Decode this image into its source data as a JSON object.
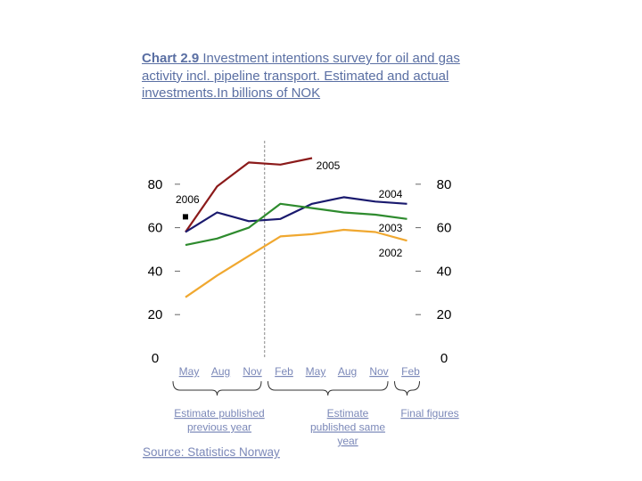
{
  "chart_data": {
    "type": "line",
    "title_bold": "Chart 2.9",
    "title_rest": " Investment intentions survey for oil and gas activity incl. pipeline transport. Estimated and actual investments.In billions of NOK",
    "x": [
      "May",
      "Aug",
      "Nov",
      "Feb",
      "May",
      "Aug",
      "Nov",
      "Feb"
    ],
    "ylim": [
      0,
      80
    ],
    "yticks": [
      0,
      20,
      40,
      60,
      80
    ],
    "series": [
      {
        "name": "2005",
        "color": "#8b1a1a",
        "values": [
          58,
          79,
          90,
          89,
          92,
          null,
          null,
          null
        ]
      },
      {
        "name": "2004",
        "color": "#1a1a6e",
        "values": [
          58,
          67,
          63,
          64,
          71,
          74,
          72,
          71
        ]
      },
      {
        "name": "2003",
        "color": "#2e8b2e",
        "values": [
          52,
          55,
          60,
          71,
          69,
          67,
          66,
          64
        ]
      },
      {
        "name": "2002",
        "color": "#f0a830",
        "values": [
          28,
          38,
          47,
          56,
          57,
          59,
          58,
          54
        ]
      },
      {
        "name": "2006",
        "color": "#000000",
        "marker_only": true,
        "values": [
          65,
          null,
          null,
          null,
          null,
          null,
          null,
          null
        ]
      }
    ],
    "vertical_divider_after_index": 2.5,
    "groups": [
      {
        "label_lines": [
          "Estimate published",
          "previous year"
        ],
        "from": 0,
        "to": 2
      },
      {
        "label_lines": [
          "Estimate",
          "published same",
          "year"
        ],
        "from": 3,
        "to": 6
      },
      {
        "label_lines": [
          "Final figures"
        ],
        "from": 7,
        "to": 7
      }
    ],
    "source": "Source: Statistics Norway"
  }
}
